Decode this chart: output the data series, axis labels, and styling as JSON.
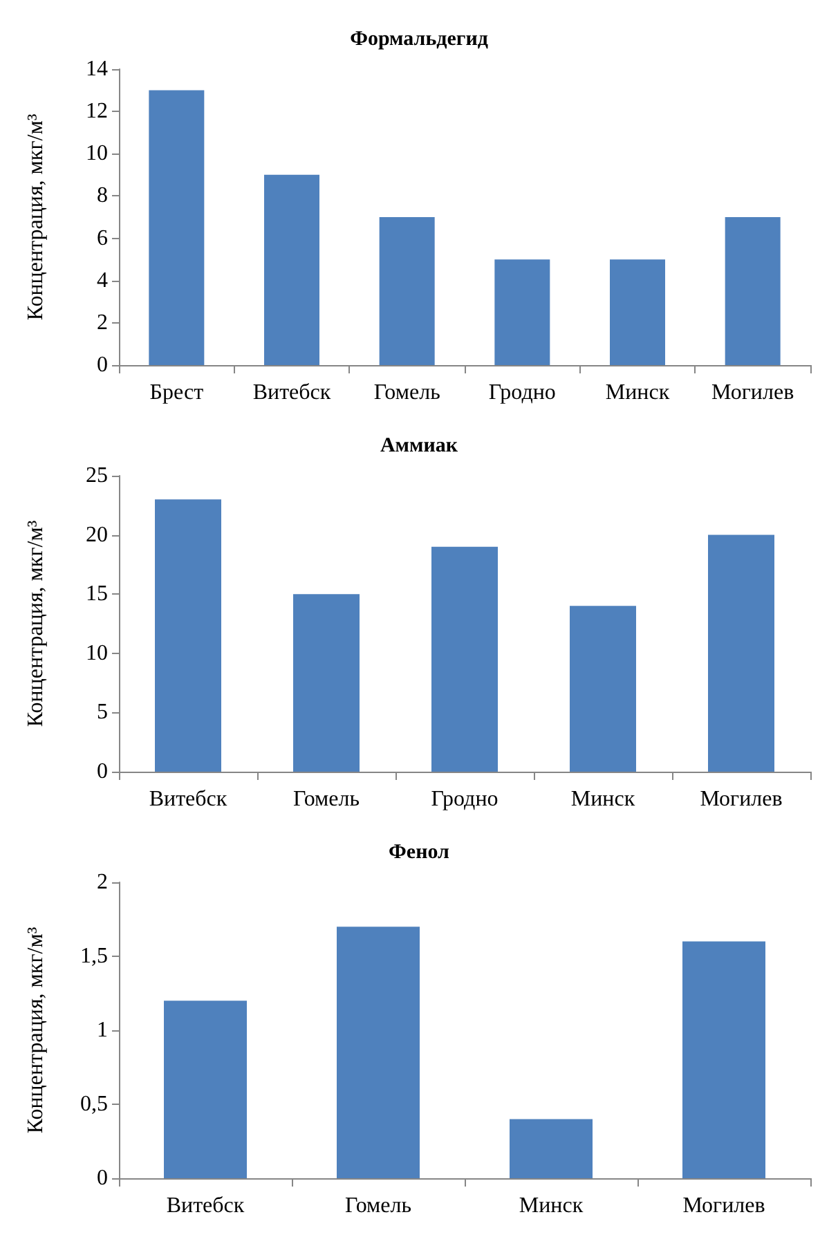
{
  "chart_data": [
    {
      "type": "bar",
      "title": "Формальдегид",
      "ylabel": "Концентрация, мкг/м³",
      "categories": [
        "Брест",
        "Витебск",
        "Гомель",
        "Гродно",
        "Минск",
        "Могилев"
      ],
      "values": [
        13,
        9,
        7,
        5,
        5,
        7
      ],
      "color": "#4f81bd",
      "ylim": [
        0,
        14
      ],
      "yticks": [
        0,
        2,
        4,
        6,
        8,
        10,
        12,
        14
      ]
    },
    {
      "type": "bar",
      "title": "Аммиак",
      "ylabel": "Концентрация, мкг/м³",
      "categories": [
        "Витебск",
        "Гомель",
        "Гродно",
        "Минск",
        "Могилев"
      ],
      "values": [
        23,
        15,
        19,
        14,
        20
      ],
      "color": "#4f81bd",
      "ylim": [
        0,
        25
      ],
      "yticks": [
        0,
        5,
        10,
        15,
        20,
        25
      ]
    },
    {
      "type": "bar",
      "title": "Фенол",
      "ylabel": "Концентрация, мкг/м³",
      "categories": [
        "Витебск",
        "Гомель",
        "Минск",
        "Могилев"
      ],
      "values": [
        1.2,
        1.7,
        0.4,
        1.6
      ],
      "color": "#4f81bd",
      "ylim": [
        0,
        2
      ],
      "yticks": [
        0,
        {
          "value": 0.5,
          "label": "0,5"
        },
        1,
        {
          "value": 1.5,
          "label": "1,5"
        },
        2
      ]
    }
  ]
}
